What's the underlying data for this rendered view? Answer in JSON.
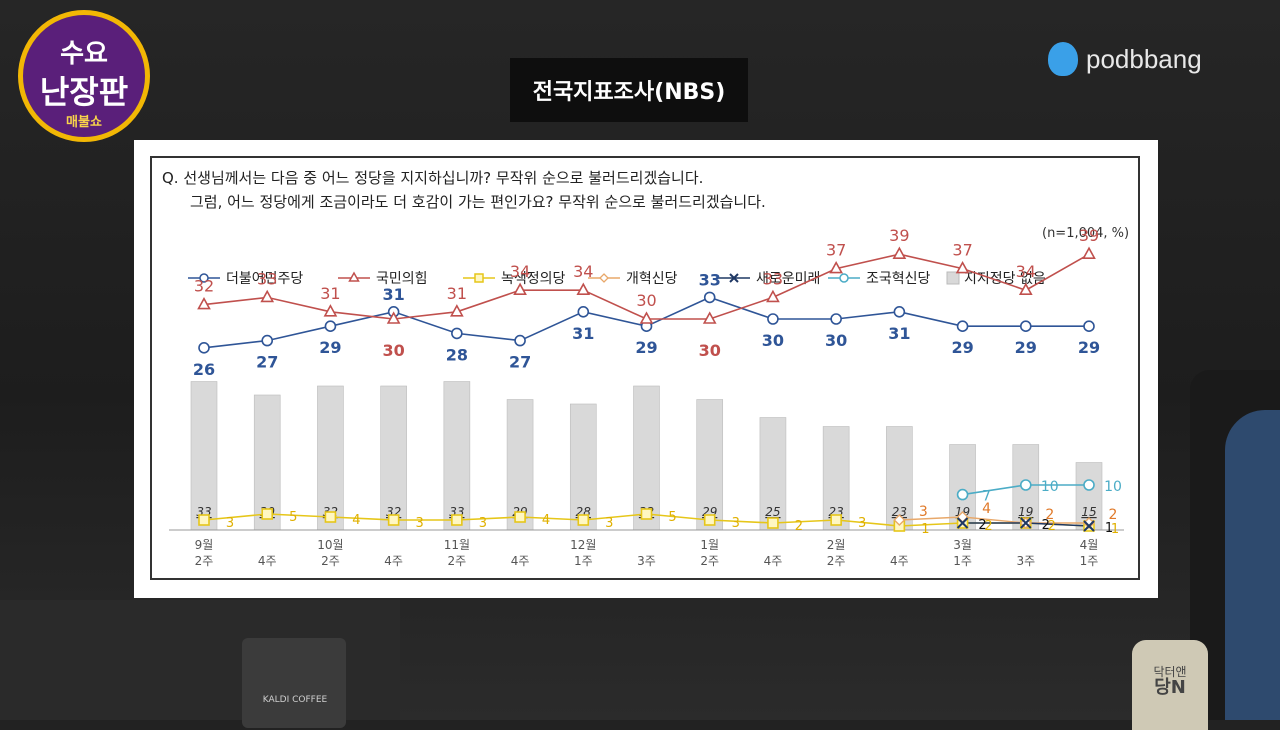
{
  "logo": {
    "line1": "수요",
    "line2": "난장판",
    "line3": "매불쇼"
  },
  "brand": {
    "name": "podbbang",
    "icon": "podbbang-logo-icon"
  },
  "title": "전국지표조사(NBS)",
  "question": {
    "line1": "Q. 선생님께서는 다음 중 어느 정당을 지지하십니까? 무작위 순으로 불러드리겠습니다.",
    "line2": "그럼, 어느 정당에게 조금이라도 더 호감이 가는 편인가요? 무작위 순으로 불러드리겠습니다."
  },
  "sample_note": "(n=1,004, %)",
  "background": {
    "cup_label": "KALDI COFFEE",
    "bottle_text_1": "닥터앤",
    "bottle_text_2": "당N"
  },
  "colors": {
    "dem": "#2f5597",
    "ppp": "#c0504d",
    "green": "#e6c619",
    "reform": "#e8a86a",
    "newfuture": "#1f3864",
    "cho": "#4bacc6",
    "none": "#d9d9d9"
  },
  "chart_data": {
    "type": "line",
    "x_labels": [
      [
        "9월",
        "2주"
      ],
      [
        "",
        "4주"
      ],
      [
        "10월",
        "2주"
      ],
      [
        "",
        "4주"
      ],
      [
        "11월",
        "2주"
      ],
      [
        "",
        "4주"
      ],
      [
        "12월",
        "1주"
      ],
      [
        "",
        "3주"
      ],
      [
        "1월",
        "2주"
      ],
      [
        "",
        "4주"
      ],
      [
        "2월",
        "2주"
      ],
      [
        "",
        "4주"
      ],
      [
        "3월",
        "1주"
      ],
      [
        "",
        "3주"
      ],
      [
        "4월",
        "1주"
      ]
    ],
    "series": [
      {
        "name": "더불어민주당",
        "key": "dem",
        "marker": "circle",
        "values": [
          26,
          27,
          29,
          31,
          28,
          27,
          31,
          29,
          33,
          30,
          30,
          31,
          29,
          29,
          29
        ],
        "labels": [
          26,
          27,
          29,
          null,
          28,
          27,
          31,
          29,
          null,
          30,
          30,
          31,
          29,
          29,
          29
        ],
        "labels_above": [
          null,
          null,
          null,
          31,
          null,
          null,
          null,
          null,
          33,
          null,
          null,
          null,
          null,
          null,
          null
        ]
      },
      {
        "name": "국민의힘",
        "key": "ppp",
        "marker": "triangle",
        "values": [
          32,
          33,
          31,
          30,
          31,
          34,
          34,
          30,
          30,
          33,
          37,
          39,
          37,
          34,
          39
        ],
        "labels_above": [
          32,
          33,
          31,
          null,
          31,
          34,
          34,
          30,
          null,
          33,
          37,
          39,
          37,
          34,
          39
        ],
        "labels_below": [
          null,
          null,
          null,
          30,
          null,
          null,
          null,
          null,
          30,
          null,
          null,
          null,
          null,
          null,
          null
        ]
      },
      {
        "name": "녹색정의당",
        "key": "green",
        "marker": "square",
        "values": [
          3,
          5,
          4,
          3,
          3,
          4,
          3,
          5,
          3,
          2,
          3,
          1,
          2,
          2,
          1
        ]
      },
      {
        "name": "개혁신당",
        "key": "reform",
        "marker": "diamond",
        "values": [
          null,
          null,
          null,
          null,
          null,
          null,
          null,
          null,
          null,
          null,
          null,
          3,
          4,
          2,
          2
        ]
      },
      {
        "name": "새로운미래",
        "key": "newfuture",
        "marker": "x",
        "values": [
          null,
          null,
          null,
          null,
          null,
          null,
          null,
          null,
          null,
          null,
          null,
          null,
          2,
          2,
          1
        ]
      },
      {
        "name": "조국혁신당",
        "key": "cho",
        "marker": "circle",
        "values": [
          null,
          null,
          null,
          null,
          null,
          null,
          null,
          null,
          null,
          null,
          null,
          null,
          7,
          10,
          10
        ]
      },
      {
        "name": "지지정당 없음",
        "key": "none",
        "marker": "bar",
        "values": [
          33,
          30,
          32,
          32,
          33,
          29,
          28,
          32,
          29,
          25,
          23,
          23,
          19,
          19,
          15
        ]
      }
    ]
  }
}
